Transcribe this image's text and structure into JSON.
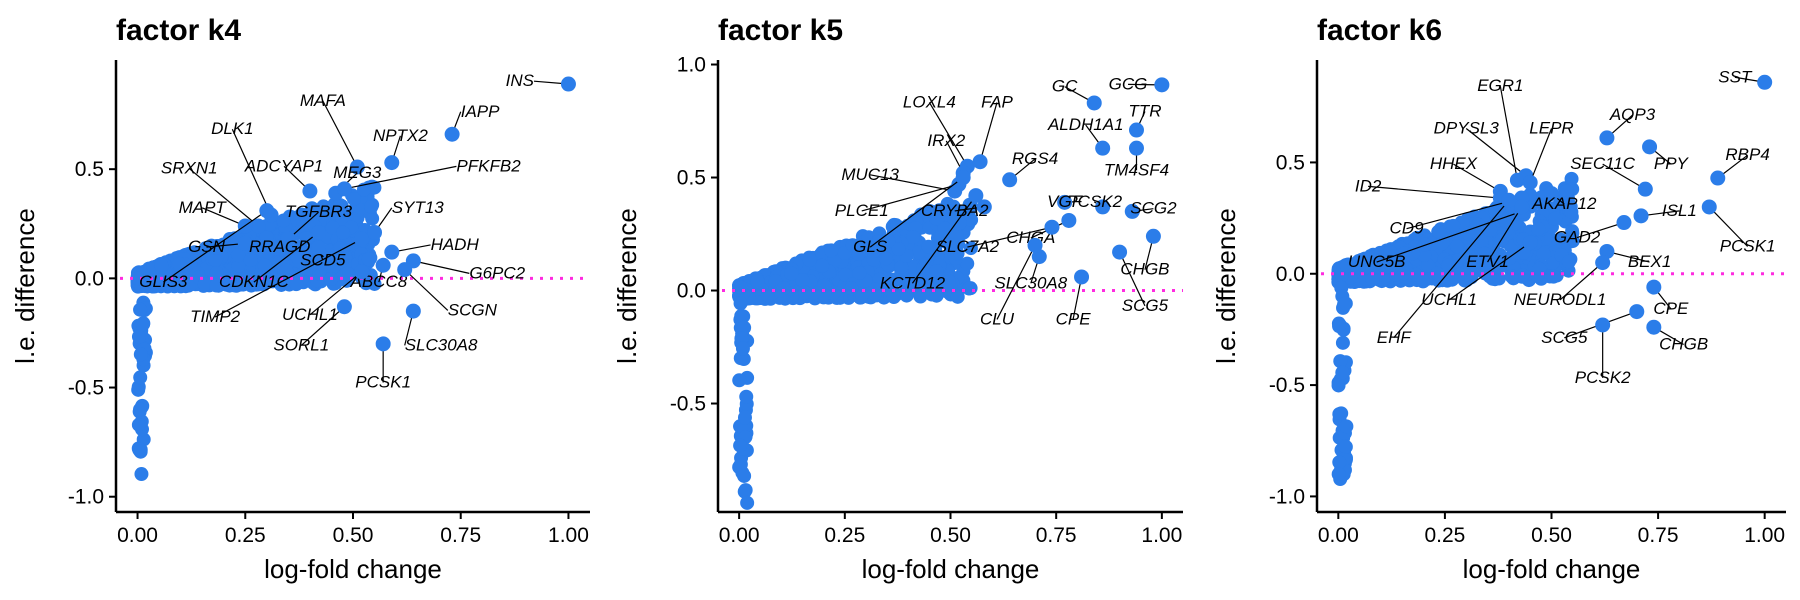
{
  "chart_data": [
    {
      "type": "scatter",
      "title": "factor k4",
      "xlabel": "log-fold change",
      "ylabel": "l.e. difference",
      "xlim": [
        -0.05,
        1.05
      ],
      "ylim": [
        -1.07,
        1.0
      ],
      "xticks": [
        0,
        0.25,
        0.5,
        0.75,
        1
      ],
      "xtick_labels": [
        "0.00",
        "0.25",
        "0.50",
        "0.75",
        "1.00"
      ],
      "yticks": [
        0.5,
        0,
        -0.5,
        -1
      ],
      "ytick_labels": [
        "0.5",
        "0.0",
        "-0.5",
        "-1.0"
      ],
      "reference_y": 0,
      "labeled_points": [
        {
          "gene": "INS",
          "x": 1.0,
          "y": 0.89,
          "lx": 0.92,
          "ly": 0.88,
          "anchor": "end"
        },
        {
          "gene": "IAPP",
          "x": 0.73,
          "y": 0.66,
          "lx": 0.75,
          "ly": 0.74,
          "anchor": "start"
        },
        {
          "gene": "MAFA",
          "x": 0.51,
          "y": 0.51,
          "lx": 0.43,
          "ly": 0.79,
          "anchor": "middle"
        },
        {
          "gene": "NPTX2",
          "x": 0.59,
          "y": 0.53,
          "lx": 0.61,
          "ly": 0.63,
          "anchor": "middle"
        },
        {
          "gene": "MEG3",
          "x": 0.46,
          "y": 0.39,
          "lx": 0.51,
          "ly": 0.46,
          "anchor": "middle"
        },
        {
          "gene": "PFKFB2",
          "x": 0.48,
          "y": 0.41,
          "lx": 0.74,
          "ly": 0.49,
          "anchor": "start"
        },
        {
          "gene": "DLK1",
          "x": 0.31,
          "y": 0.29,
          "lx": 0.22,
          "ly": 0.66,
          "anchor": "middle"
        },
        {
          "gene": "ADCYAP1",
          "x": 0.4,
          "y": 0.4,
          "lx": 0.34,
          "ly": 0.49,
          "anchor": "middle"
        },
        {
          "gene": "SRXN1",
          "x": 0.28,
          "y": 0.24,
          "lx": 0.12,
          "ly": 0.48,
          "anchor": "middle"
        },
        {
          "gene": "SYT13",
          "x": 0.55,
          "y": 0.21,
          "lx": 0.59,
          "ly": 0.3,
          "anchor": "start"
        },
        {
          "gene": "TGFBR3",
          "x": 0.35,
          "y": 0.18,
          "lx": 0.42,
          "ly": 0.28,
          "anchor": "middle"
        },
        {
          "gene": "MAPT",
          "x": 0.25,
          "y": 0.24,
          "lx": 0.15,
          "ly": 0.3,
          "anchor": "middle"
        },
        {
          "gene": "HADH",
          "x": 0.59,
          "y": 0.12,
          "lx": 0.68,
          "ly": 0.13,
          "anchor": "start"
        },
        {
          "gene": "GSN",
          "x": 0.25,
          "y": 0.16,
          "lx": 0.16,
          "ly": 0.12,
          "anchor": "middle"
        },
        {
          "gene": "RRAGD",
          "x": 0.32,
          "y": 0.14,
          "lx": 0.33,
          "ly": 0.12,
          "anchor": "middle"
        },
        {
          "gene": "SCD5",
          "x": 0.42,
          "y": 0.14,
          "lx": 0.43,
          "ly": 0.06,
          "anchor": "middle"
        },
        {
          "gene": "G6PC2",
          "x": 0.64,
          "y": 0.08,
          "lx": 0.77,
          "ly": 0.0,
          "anchor": "start"
        },
        {
          "gene": "ABCC8",
          "x": 0.57,
          "y": 0.06,
          "lx": 0.56,
          "ly": -0.04,
          "anchor": "middle"
        },
        {
          "gene": "GLIS3",
          "x": 0.3,
          "y": 0.31,
          "lx": 0.06,
          "ly": -0.04,
          "anchor": "middle"
        },
        {
          "gene": "CDKN1C",
          "x": 0.42,
          "y": 0.21,
          "lx": 0.27,
          "ly": -0.04,
          "anchor": "middle"
        },
        {
          "gene": "SCGN",
          "x": 0.62,
          "y": 0.04,
          "lx": 0.72,
          "ly": -0.17,
          "anchor": "start"
        },
        {
          "gene": "TIMP2",
          "x": 0.52,
          "y": 0.18,
          "lx": 0.18,
          "ly": -0.2,
          "anchor": "middle"
        },
        {
          "gene": "UCHL1",
          "x": 0.52,
          "y": 0.03,
          "lx": 0.4,
          "ly": -0.19,
          "anchor": "middle"
        },
        {
          "gene": "SLC30A8",
          "x": 0.64,
          "y": -0.15,
          "lx": 0.62,
          "ly": -0.33,
          "anchor": "start"
        },
        {
          "gene": "SORL1",
          "x": 0.48,
          "y": -0.13,
          "lx": 0.38,
          "ly": -0.33,
          "anchor": "middle"
        },
        {
          "gene": "PCSK1",
          "x": 0.57,
          "y": -0.3,
          "lx": 0.57,
          "ly": -0.5,
          "anchor": "middle"
        }
      ]
    },
    {
      "type": "scatter",
      "title": "factor k5",
      "xlabel": "log-fold change",
      "ylabel": "l.e. difference",
      "xlim": [
        -0.05,
        1.05
      ],
      "ylim": [
        -0.98,
        1.02
      ],
      "xticks": [
        0,
        0.25,
        0.5,
        0.75,
        1
      ],
      "xtick_labels": [
        "0.00",
        "0.25",
        "0.50",
        "0.75",
        "1.00"
      ],
      "yticks": [
        1,
        0.5,
        0,
        -0.5
      ],
      "ytick_labels": [
        "1.0",
        "0.5",
        "0.0",
        "-0.5"
      ],
      "reference_y": 0,
      "labeled_points": [
        {
          "gene": "GC",
          "x": 0.84,
          "y": 0.83,
          "lx": 0.77,
          "ly": 0.88,
          "anchor": "middle"
        },
        {
          "gene": "GCG",
          "x": 1.0,
          "y": 0.91,
          "lx": 0.92,
          "ly": 0.89,
          "anchor": "middle"
        },
        {
          "gene": "TTR",
          "x": 0.94,
          "y": 0.71,
          "lx": 0.96,
          "ly": 0.77,
          "anchor": "middle"
        },
        {
          "gene": "LOXL4",
          "x": 0.54,
          "y": 0.55,
          "lx": 0.45,
          "ly": 0.81,
          "anchor": "middle"
        },
        {
          "gene": "FAP",
          "x": 0.57,
          "y": 0.57,
          "lx": 0.61,
          "ly": 0.81,
          "anchor": "middle"
        },
        {
          "gene": "ALDH1A1",
          "x": 0.86,
          "y": 0.63,
          "lx": 0.82,
          "ly": 0.71,
          "anchor": "middle"
        },
        {
          "gene": "IRX2",
          "x": 0.53,
          "y": 0.52,
          "lx": 0.49,
          "ly": 0.64,
          "anchor": "middle"
        },
        {
          "gene": "RGS4",
          "x": 0.64,
          "y": 0.49,
          "lx": 0.7,
          "ly": 0.56,
          "anchor": "middle"
        },
        {
          "gene": "TM4SF4",
          "x": 0.94,
          "y": 0.63,
          "lx": 0.94,
          "ly": 0.51,
          "anchor": "middle"
        },
        {
          "gene": "MUC13",
          "x": 0.51,
          "y": 0.44,
          "lx": 0.31,
          "ly": 0.49,
          "anchor": "middle"
        },
        {
          "gene": "PCSK2",
          "x": 0.86,
          "y": 0.37,
          "lx": 0.84,
          "ly": 0.37,
          "anchor": "middle"
        },
        {
          "gene": "SCG2",
          "x": 0.93,
          "y": 0.35,
          "lx": 0.98,
          "ly": 0.34,
          "anchor": "middle"
        },
        {
          "gene": "VGF",
          "x": 0.77,
          "y": 0.39,
          "lx": 0.77,
          "ly": 0.37,
          "anchor": "middle"
        },
        {
          "gene": "PLCE1",
          "x": 0.52,
          "y": 0.47,
          "lx": 0.29,
          "ly": 0.33,
          "anchor": "middle"
        },
        {
          "gene": "CRYBA2",
          "x": 0.58,
          "y": 0.37,
          "lx": 0.51,
          "ly": 0.33,
          "anchor": "middle"
        },
        {
          "gene": "CHGA",
          "x": 0.78,
          "y": 0.31,
          "lx": 0.69,
          "ly": 0.21,
          "anchor": "middle"
        },
        {
          "gene": "GLS",
          "x": 0.53,
          "y": 0.5,
          "lx": 0.31,
          "ly": 0.17,
          "anchor": "middle"
        },
        {
          "gene": "SLC7A2",
          "x": 0.74,
          "y": 0.28,
          "lx": 0.54,
          "ly": 0.17,
          "anchor": "middle"
        },
        {
          "gene": "CHGB",
          "x": 0.98,
          "y": 0.24,
          "lx": 0.96,
          "ly": 0.07,
          "anchor": "middle"
        },
        {
          "gene": "KCTD12",
          "x": 0.56,
          "y": 0.42,
          "lx": 0.41,
          "ly": 0.01,
          "anchor": "middle"
        },
        {
          "gene": "SLC30A8",
          "x": 0.71,
          "y": 0.15,
          "lx": 0.69,
          "ly": 0.01,
          "anchor": "middle"
        },
        {
          "gene": "SCG5",
          "x": 0.9,
          "y": 0.17,
          "lx": 0.96,
          "ly": -0.09,
          "anchor": "middle"
        },
        {
          "gene": "CLU",
          "x": 0.7,
          "y": 0.2,
          "lx": 0.61,
          "ly": -0.15,
          "anchor": "middle"
        },
        {
          "gene": "CPE",
          "x": 0.81,
          "y": 0.06,
          "lx": 0.79,
          "ly": -0.15,
          "anchor": "middle"
        }
      ]
    },
    {
      "type": "scatter",
      "title": "factor k6",
      "xlabel": "log-fold change",
      "ylabel": "l.e. difference",
      "xlim": [
        -0.05,
        1.05
      ],
      "ylim": [
        -1.07,
        0.96
      ],
      "xticks": [
        0,
        0.25,
        0.5,
        0.75,
        1
      ],
      "xtick_labels": [
        "0.00",
        "0.25",
        "0.50",
        "0.75",
        "1.00"
      ],
      "yticks": [
        0.5,
        0,
        -0.5,
        -1
      ],
      "ytick_labels": [
        "0.5",
        "0.0",
        "-0.5",
        "-1.0"
      ],
      "reference_y": 0,
      "labeled_points": [
        {
          "gene": "SST",
          "x": 1.0,
          "y": 0.86,
          "lx": 0.93,
          "ly": 0.86,
          "anchor": "middle"
        },
        {
          "gene": "AQP3",
          "x": 0.63,
          "y": 0.61,
          "lx": 0.69,
          "ly": 0.69,
          "anchor": "middle"
        },
        {
          "gene": "RBP4",
          "x": 0.89,
          "y": 0.43,
          "lx": 0.96,
          "ly": 0.51,
          "anchor": "middle"
        },
        {
          "gene": "EGR1",
          "x": 0.42,
          "y": 0.42,
          "lx": 0.38,
          "ly": 0.82,
          "anchor": "middle"
        },
        {
          "gene": "PPY",
          "x": 0.73,
          "y": 0.57,
          "lx": 0.78,
          "ly": 0.47,
          "anchor": "middle"
        },
        {
          "gene": "DPYSL3",
          "x": 0.44,
          "y": 0.44,
          "lx": 0.3,
          "ly": 0.63,
          "anchor": "middle"
        },
        {
          "gene": "LEPR",
          "x": 0.45,
          "y": 0.41,
          "lx": 0.5,
          "ly": 0.63,
          "anchor": "middle"
        },
        {
          "gene": "SEC11C",
          "x": 0.72,
          "y": 0.38,
          "lx": 0.62,
          "ly": 0.47,
          "anchor": "middle"
        },
        {
          "gene": "HHEX",
          "x": 0.38,
          "y": 0.37,
          "lx": 0.27,
          "ly": 0.47,
          "anchor": "middle"
        },
        {
          "gene": "ID2",
          "x": 0.38,
          "y": 0.34,
          "lx": 0.07,
          "ly": 0.37,
          "anchor": "middle"
        },
        {
          "gene": "AKAP12",
          "x": 0.5,
          "y": 0.36,
          "lx": 0.53,
          "ly": 0.29,
          "anchor": "middle"
        },
        {
          "gene": "ISL1",
          "x": 0.71,
          "y": 0.26,
          "lx": 0.8,
          "ly": 0.26,
          "anchor": "middle"
        },
        {
          "gene": "PCSK1",
          "x": 0.87,
          "y": 0.3,
          "lx": 0.96,
          "ly": 0.1,
          "anchor": "middle"
        },
        {
          "gene": "CD9",
          "x": 0.43,
          "y": 0.34,
          "lx": 0.16,
          "ly": 0.18,
          "anchor": "middle"
        },
        {
          "gene": "GAD2",
          "x": 0.67,
          "y": 0.23,
          "lx": 0.56,
          "ly": 0.14,
          "anchor": "middle"
        },
        {
          "gene": "UNC5B",
          "x": 0.43,
          "y": 0.28,
          "lx": 0.09,
          "ly": 0.03,
          "anchor": "middle"
        },
        {
          "gene": "ETV1",
          "x": 0.43,
          "y": 0.3,
          "lx": 0.35,
          "ly": 0.03,
          "anchor": "middle"
        },
        {
          "gene": "BEX1",
          "x": 0.63,
          "y": 0.1,
          "lx": 0.73,
          "ly": 0.03,
          "anchor": "middle"
        },
        {
          "gene": "NEURODL1",
          "x": 0.62,
          "y": 0.05,
          "lx": 0.52,
          "ly": -0.14,
          "anchor": "middle"
        },
        {
          "gene": "UCHL1",
          "x": 0.45,
          "y": 0.14,
          "lx": 0.26,
          "ly": -0.14,
          "anchor": "middle"
        },
        {
          "gene": "CPE",
          "x": 0.74,
          "y": -0.06,
          "lx": 0.78,
          "ly": -0.18,
          "anchor": "middle"
        },
        {
          "gene": "EHF",
          "x": 0.4,
          "y": 0.33,
          "lx": 0.13,
          "ly": -0.31,
          "anchor": "middle"
        },
        {
          "gene": "SCG5",
          "x": 0.7,
          "y": -0.17,
          "lx": 0.53,
          "ly": -0.31,
          "anchor": "middle"
        },
        {
          "gene": "CHGB",
          "x": 0.74,
          "y": -0.24,
          "lx": 0.81,
          "ly": -0.34,
          "anchor": "middle"
        },
        {
          "gene": "PCSK2",
          "x": 0.62,
          "y": -0.23,
          "lx": 0.62,
          "ly": -0.49,
          "anchor": "middle"
        }
      ]
    }
  ],
  "colors": {
    "points": "#2b7de9",
    "reference_line": "#ff2be0",
    "axis": "#000000"
  }
}
